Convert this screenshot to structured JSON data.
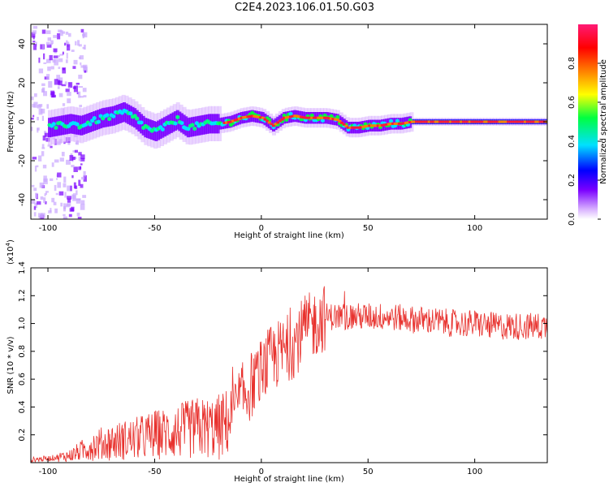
{
  "title": "C2E4.2023.106.01.50.G03",
  "chart_data": [
    {
      "type": "heatmap",
      "xlabel": "Height of straight line (km)",
      "ylabel": "Frequency (Hz)",
      "xlim": [
        -108,
        134
      ],
      "ylim": [
        -50,
        50
      ],
      "xticks": [
        -100,
        -50,
        0,
        50,
        100
      ],
      "yticks": [
        -40,
        -20,
        0,
        20,
        40
      ],
      "colorbar": {
        "label": "Normalized spectral amplitude",
        "range": [
          0,
          1
        ],
        "ticks": [
          "0.0",
          "0.2",
          "0.4",
          "0.6",
          "0.8"
        ],
        "colors": [
          "#ffffff",
          "#d9b3ff",
          "#7a00ff",
          "#0000ff",
          "#00e0ff",
          "#00ff40",
          "#ffff00",
          "#ff8000",
          "#ff0000",
          "#ff1a75"
        ]
      },
      "ridge": {
        "x": [
          -100,
          -95,
          -90,
          -85,
          -80,
          -75,
          -70,
          -65,
          -60,
          -55,
          -50,
          -45,
          -40,
          -35,
          -30,
          -25,
          -20,
          -15,
          -10,
          -5,
          0,
          5,
          10,
          15,
          20,
          25,
          30,
          35,
          40,
          45,
          50,
          55,
          60,
          65,
          70,
          75,
          80,
          90,
          100,
          110,
          120,
          134
        ],
        "frequency": [
          -3,
          -2,
          -1,
          -2,
          0,
          2,
          3,
          5,
          2,
          -3,
          -5,
          -2,
          1,
          -3,
          -2,
          -1,
          -1,
          0,
          2,
          3,
          2,
          -2,
          2,
          3,
          2,
          2,
          2,
          1,
          -3,
          -3,
          -2,
          -2,
          -1,
          -1,
          0,
          0,
          0,
          0,
          0,
          0,
          0,
          0
        ]
      }
    },
    {
      "type": "line",
      "xlabel": "Height of straight line (km)",
      "ylabel": "SNR (10 * v/v)",
      "scale_label_prefix": "(x10",
      "scale_label_exp": "4",
      "scale_label_suffix": ")",
      "xlim": [
        -108,
        134
      ],
      "ylim": [
        0,
        1.4
      ],
      "xticks": [
        -100,
        -50,
        0,
        50,
        100
      ],
      "yticks": [
        "0.2",
        "0.4",
        "0.6",
        "0.8",
        "1.0",
        "1.2",
        "1.4"
      ],
      "series_color": "#e8322e",
      "envelope": {
        "x": [
          -108,
          -100,
          -90,
          -85,
          -80,
          -70,
          -60,
          -50,
          -40,
          -30,
          -20,
          -15,
          -10,
          -5,
          0,
          5,
          10,
          15,
          20,
          30,
          40,
          50,
          60,
          70,
          80,
          90,
          100,
          110,
          120,
          134
        ],
        "y": [
          0.02,
          0.03,
          0.05,
          0.08,
          0.12,
          0.15,
          0.17,
          0.2,
          0.22,
          0.25,
          0.25,
          0.3,
          0.45,
          0.55,
          0.65,
          0.75,
          0.8,
          0.85,
          0.95,
          1.05,
          1.05,
          1.05,
          1.05,
          1.03,
          1.02,
          1.0,
          1.0,
          0.98,
          0.98,
          0.98
        ]
      }
    }
  ]
}
